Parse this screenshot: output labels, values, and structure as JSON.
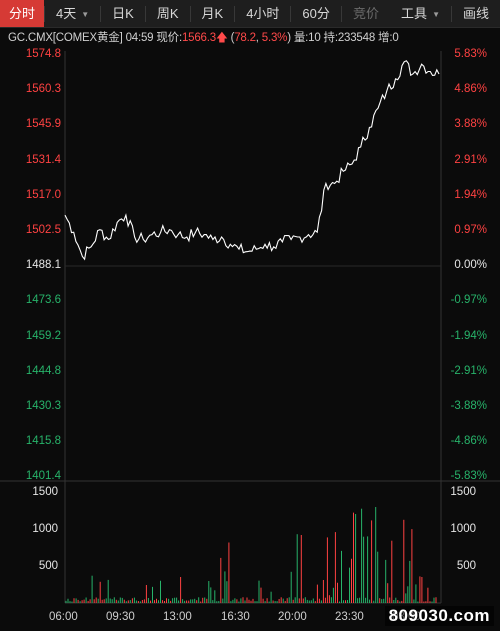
{
  "tabs": [
    {
      "label": "分时",
      "active": true
    },
    {
      "label": "4天",
      "caret": true
    },
    {
      "label": "日K"
    },
    {
      "label": "周K"
    },
    {
      "label": "月K"
    },
    {
      "label": "4小时"
    },
    {
      "label": "60分"
    },
    {
      "label": "竞价",
      "dim": true
    },
    {
      "label": "工具",
      "caret": true
    },
    {
      "label": "画线"
    }
  ],
  "info": {
    "symbol": "GC.CMX[COMEX黄金]",
    "time": "04:59",
    "price_label": "现价:",
    "price": "1566.3",
    "change_open": "(",
    "change": "78.2",
    "change_pct": "5.3%",
    "change_close": ")",
    "volume": "量:10",
    "holding": "持:233548",
    "increase": "增:0"
  },
  "price_axis": [
    "1574.8",
    "1560.3",
    "1545.9",
    "1531.4",
    "1517.0",
    "1502.5",
    "1488.1",
    "1473.6",
    "1459.2",
    "1444.8",
    "1430.3",
    "1415.8",
    "1401.4"
  ],
  "pct_axis": [
    "5.83%",
    "4.86%",
    "3.88%",
    "2.91%",
    "1.94%",
    "0.97%",
    "0.00%",
    "-0.97%",
    "-1.94%",
    "-2.91%",
    "-3.88%",
    "-4.86%",
    "-5.83%"
  ],
  "volume_axis": [
    "1500",
    "1000",
    "500"
  ],
  "time_axis": [
    "06:00",
    "09:30",
    "13:00",
    "16:30",
    "20:00",
    "23:30",
    "03:00"
  ],
  "watermark": "809030.com",
  "colors": {
    "up": "#ff4242",
    "down": "#27b36a",
    "accent": "#d63a35",
    "line": "#ffffff",
    "base": "#e6e6e6"
  },
  "chart_data": {
    "type": "line",
    "base_price": 1488.1,
    "ylim": [
      1401.4,
      1574.8
    ],
    "x_ticks": [
      "06:00",
      "09:30",
      "13:00",
      "16:30",
      "20:00",
      "23:30",
      "03:00"
    ],
    "series": [
      {
        "values": [
          1509,
          1502,
          1492,
          1496,
          1503,
          1499,
          1506,
          1509,
          1500,
          1499,
          1501,
          1502,
          1503,
          1501,
          1500,
          1502,
          1501,
          1499,
          1500,
          1497,
          1495,
          1494,
          1495,
          1497,
          1496,
          1498,
          1499,
          1500,
          1501,
          1502,
          1522,
          1522,
          1527,
          1530,
          1537,
          1545,
          1553,
          1560,
          1565,
          1572,
          1567,
          1571,
          1568,
          1567
        ]
      }
    ],
    "volume": {
      "ylim": [
        0,
        1800
      ],
      "ticks": [
        1500,
        1000,
        500
      ]
    }
  }
}
